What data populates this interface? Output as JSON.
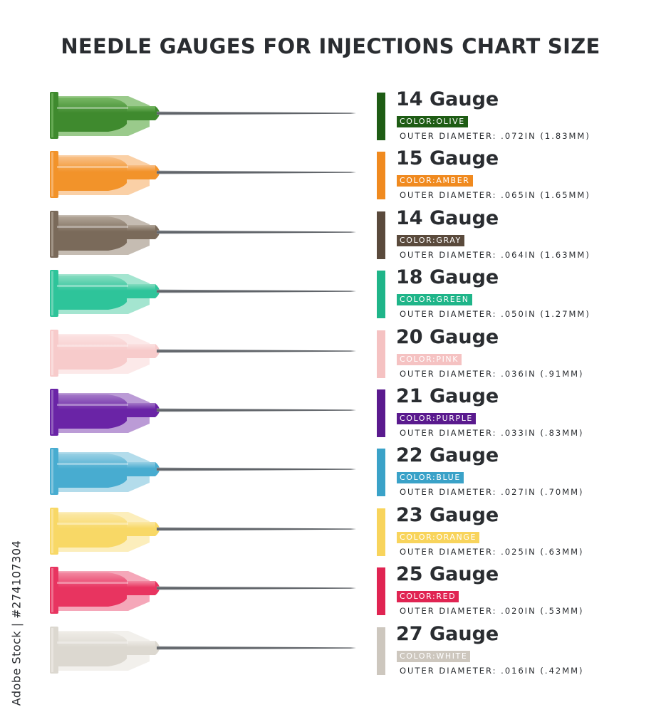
{
  "title": "NEEDLE GAUGES FOR INJECTIONS CHART SIZE",
  "watermark": "Adobe Stock | #274107304",
  "rows": [
    {
      "gauge": "14 Gauge",
      "color_label": "COLOR:OLIVE",
      "outer": "OUTER DIAMETER: .072IN (1.83MM)",
      "swatch": "#1e5c14",
      "hub": "#3f8a2e",
      "light": "#78b864"
    },
    {
      "gauge": "15 Gauge",
      "color_label": "COLOR:AMBER",
      "outer": "OUTER DIAMETER: .065IN (1.65MM)",
      "swatch": "#f08a1f",
      "hub": "#f2932a",
      "light": "#f8c088"
    },
    {
      "gauge": "14 Gauge",
      "color_label": "COLOR:GRAY",
      "outer": "OUTER DIAMETER: .064IN (1.63MM)",
      "swatch": "#5a4a3c",
      "hub": "#7a6a5a",
      "light": "#b2a698"
    },
    {
      "gauge": "18 Gauge",
      "color_label": "COLOR:GREEN",
      "outer": "OUTER DIAMETER: .050IN (1.27MM)",
      "swatch": "#1fb589",
      "hub": "#2ec49a",
      "light": "#86dcc0"
    },
    {
      "gauge": "20 Gauge",
      "color_label": "COLOR:PINK",
      "outer": "OUTER DIAMETER: .036IN (.91MM)",
      "swatch": "#f5c2c2",
      "hub": "#f7cbcb",
      "light": "#fbe2e2"
    },
    {
      "gauge": "21 Gauge",
      "color_label": "COLOR:PURPLE",
      "outer": "OUTER DIAMETER: .033IN (.83MM)",
      "swatch": "#5a1a8e",
      "hub": "#6a24a6",
      "light": "#a47ac8"
    },
    {
      "gauge": "22 Gauge",
      "color_label": "COLOR:BLUE",
      "outer": "OUTER DIAMETER: .027IN (.70MM)",
      "swatch": "#3aa2c8",
      "hub": "#48acd0",
      "light": "#9ad0e4"
    },
    {
      "gauge": "23 Gauge",
      "color_label": "COLOR:ORANGE",
      "outer": "OUTER DIAMETER: .025IN (.63MM)",
      "swatch": "#f8d45c",
      "hub": "#f8d866",
      "light": "#fbe8a6"
    },
    {
      "gauge": "25 Gauge",
      "color_label": "COLOR:RED",
      "outer": "OUTER DIAMETER: .020IN (.53MM)",
      "swatch": "#e02452",
      "hub": "#e83460",
      "light": "#f28aa2"
    },
    {
      "gauge": "27 Gauge",
      "color_label": "COLOR:WHITE",
      "outer": "OUTER DIAMETER: .016IN (.42MM)",
      "swatch": "#cdc7be",
      "hub": "#dcd8d0",
      "light": "#eeebe6"
    }
  ]
}
